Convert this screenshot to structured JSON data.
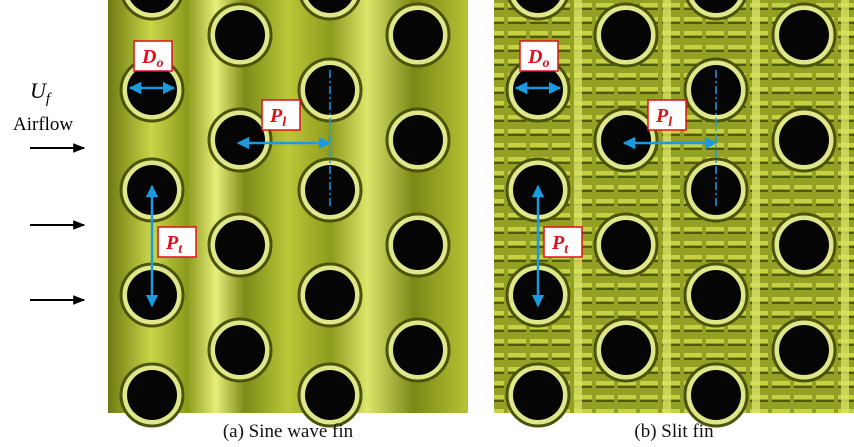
{
  "flow": {
    "symbol": "U",
    "subscript": "f",
    "label": "Airflow"
  },
  "panels": [
    {
      "caption": "(a) Sine wave fin",
      "outer_diameter": {
        "main": "D",
        "sub": "o"
      },
      "longitudinal_pitch": {
        "main": "P",
        "sub": "l"
      },
      "transverse_pitch": {
        "main": "P",
        "sub": "t"
      }
    },
    {
      "caption": "(b) Slit fin",
      "outer_diameter": {
        "main": "D",
        "sub": "o"
      },
      "longitudinal_pitch": {
        "main": "P",
        "sub": "l"
      },
      "transverse_pitch": {
        "main": "P",
        "sub": "t"
      }
    }
  ]
}
